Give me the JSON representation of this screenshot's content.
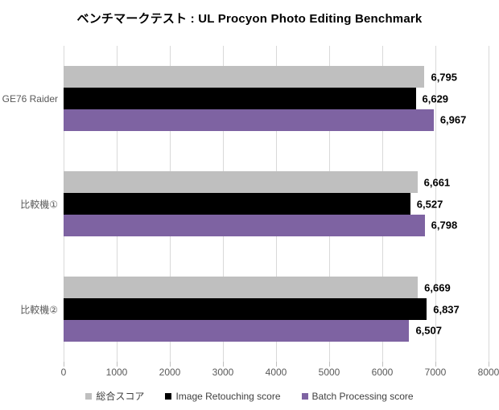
{
  "chart_data": {
    "type": "bar",
    "orientation": "horizontal",
    "title": "ベンチマークテスト : UL Procyon Photo Editing Benchmark",
    "categories": [
      "GE76 Raider",
      "比較機①",
      "比較機②"
    ],
    "series": [
      {
        "name": "総合スコア",
        "color": "#bfbfbf",
        "values": [
          6795,
          6661,
          6669
        ]
      },
      {
        "name": "Image Retouching score",
        "color": "#000000",
        "values": [
          6629,
          6527,
          6837
        ]
      },
      {
        "name": "Batch Processing score",
        "color": "#7e63a2",
        "values": [
          6967,
          6798,
          6507
        ]
      }
    ],
    "xlim": [
      0,
      8000
    ],
    "x_ticks": [
      0,
      1000,
      2000,
      3000,
      4000,
      5000,
      6000,
      7000,
      8000
    ],
    "grid": "vertical-only",
    "legend_position": "bottom",
    "value_labels": "outside-end, thousands-comma"
  },
  "style": {
    "gridline_color": "#d9d9d9",
    "tick_color": "#bfbfbf",
    "axis_text_color": "#595959",
    "category_text_color": "#595959",
    "value_label_color": "#000000",
    "legend_text_color": "#404040",
    "background": "#ffffff"
  }
}
